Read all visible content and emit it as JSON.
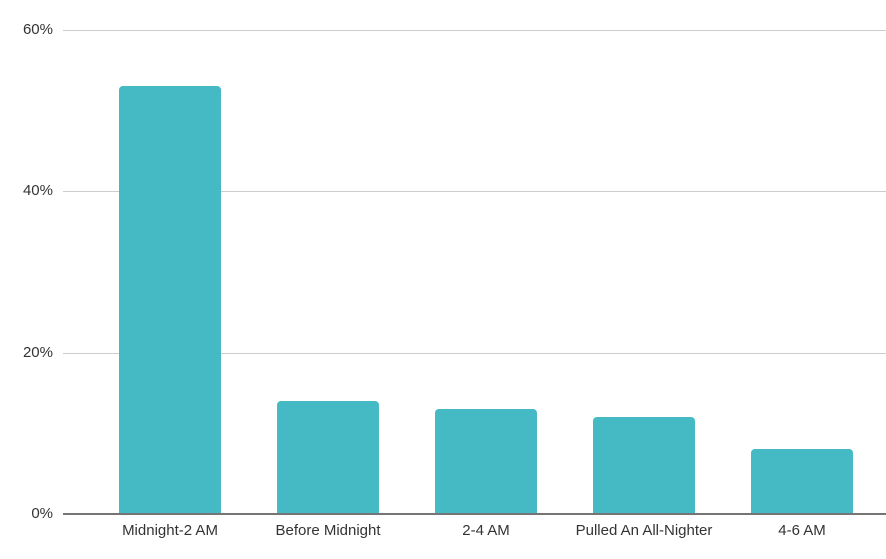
{
  "chart_data": {
    "type": "bar",
    "categories": [
      "Midnight-2 AM",
      "Before Midnight",
      "2-4 AM",
      "Pulled An All-Nighter",
      "4-6 AM"
    ],
    "values": [
      53,
      14,
      13,
      12,
      8
    ],
    "value_unit": "%",
    "title": "",
    "xlabel": "",
    "ylabel": "",
    "ylim": [
      0,
      60
    ],
    "y_ticks": [
      0,
      20,
      40,
      60
    ],
    "y_tick_labels": [
      "0%",
      "20%",
      "40%",
      "60%"
    ],
    "grid": "horizontal",
    "legend": "none",
    "colors": {
      "bar_fill": "#45b9c4",
      "gridline": "#cccccc",
      "axis_baseline": "#757575",
      "tick_label_text": "#333333",
      "background": "#ffffff"
    }
  }
}
